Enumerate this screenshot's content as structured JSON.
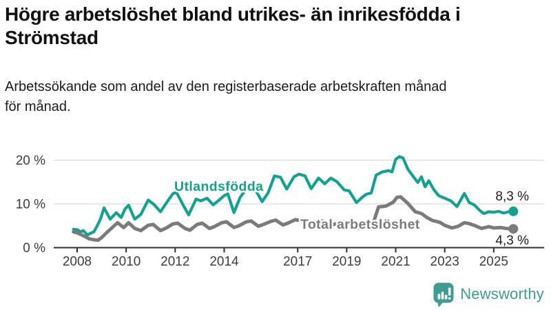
{
  "header": {
    "title_lines": [
      "Högre arbetslöshet bland utrikes- än inrikesfödda i",
      "Strömstad"
    ],
    "subtitle_lines": [
      "Arbetssökande som andel av den registerbaserade arbetskraften månad",
      "för månad."
    ]
  },
  "chart_data": {
    "type": "line",
    "title": "Högre arbetslöshet bland utrikes- än inrikesfödda i Strömstad",
    "subtitle": "Arbetssökande som andel av den registerbaserade arbetskraften månad för månad.",
    "xlabel": "",
    "ylabel": "",
    "unit": "%",
    "grid": "horizontal-only",
    "legend": "inline-labels",
    "x_ticks": [
      2008,
      2010,
      2012,
      2014,
      2017,
      2019,
      2021,
      2023,
      2025
    ],
    "y_ticks": [
      0,
      10,
      20
    ],
    "y_tick_labels": [
      "0 %",
      "10 %",
      "20 %"
    ],
    "xlim": [
      2007.6,
      2026.4
    ],
    "ylim": [
      0,
      22
    ],
    "series": [
      {
        "name": "Utlandsfödda",
        "color": "#13a291",
        "end_label": "8,3 %",
        "end_value": 8.3,
        "points": [
          [
            2007.85,
            4.2
          ],
          [
            2008.0,
            4.1
          ],
          [
            2008.15,
            3.6
          ],
          [
            2008.25,
            3.9
          ],
          [
            2008.42,
            2.9
          ],
          [
            2008.55,
            3.3
          ],
          [
            2008.68,
            3.6
          ],
          [
            2008.8,
            4.8
          ],
          [
            2008.95,
            6.5
          ],
          [
            2009.1,
            9.1
          ],
          [
            2009.35,
            6.5
          ],
          [
            2009.6,
            8.0
          ],
          [
            2009.8,
            6.9
          ],
          [
            2009.95,
            8.8
          ],
          [
            2010.1,
            9.7
          ],
          [
            2010.35,
            6.5
          ],
          [
            2010.6,
            7.6
          ],
          [
            2010.9,
            10.9
          ],
          [
            2011.15,
            9.8
          ],
          [
            2011.4,
            8.2
          ],
          [
            2011.65,
            10.3
          ],
          [
            2011.9,
            12.3
          ],
          [
            2012.05,
            12.7
          ],
          [
            2012.3,
            10.0
          ],
          [
            2012.55,
            7.5
          ],
          [
            2012.85,
            11.1
          ],
          [
            2013.05,
            10.7
          ],
          [
            2013.3,
            11.3
          ],
          [
            2013.55,
            9.8
          ],
          [
            2013.8,
            10.9
          ],
          [
            2014.0,
            11.9
          ],
          [
            2014.15,
            12.3
          ],
          [
            2014.4,
            8.0
          ],
          [
            2014.65,
            11.5
          ],
          [
            2014.85,
            13.0
          ],
          [
            2015.05,
            14.2
          ],
          [
            2015.3,
            13.0
          ],
          [
            2015.55,
            10.5
          ],
          [
            2015.8,
            12.6
          ],
          [
            2016.05,
            16.4
          ],
          [
            2016.3,
            16.1
          ],
          [
            2016.55,
            13.4
          ],
          [
            2016.85,
            16.2
          ],
          [
            2017.05,
            16.8
          ],
          [
            2017.3,
            16.4
          ],
          [
            2017.55,
            13.5
          ],
          [
            2017.85,
            15.9
          ],
          [
            2018.1,
            14.6
          ],
          [
            2018.35,
            15.9
          ],
          [
            2018.6,
            15.1
          ],
          [
            2018.9,
            13.2
          ],
          [
            2019.1,
            13.0
          ],
          [
            2019.4,
            10.3
          ],
          [
            2019.65,
            11.6
          ],
          [
            2019.8,
            12.2
          ],
          [
            2020.0,
            12.5
          ],
          [
            2020.2,
            16.6
          ],
          [
            2020.45,
            17.3
          ],
          [
            2020.7,
            17.6
          ],
          [
            2020.85,
            17.3
          ],
          [
            2021.0,
            20.2
          ],
          [
            2021.15,
            20.8
          ],
          [
            2021.3,
            20.5
          ],
          [
            2021.5,
            17.9
          ],
          [
            2021.7,
            16.4
          ],
          [
            2021.9,
            14.9
          ],
          [
            2022.05,
            16.2
          ],
          [
            2022.2,
            13.9
          ],
          [
            2022.35,
            15.3
          ],
          [
            2022.55,
            13.3
          ],
          [
            2022.75,
            11.9
          ],
          [
            2023.0,
            11.3
          ],
          [
            2023.25,
            10.7
          ],
          [
            2023.5,
            9.4
          ],
          [
            2023.8,
            12.4
          ],
          [
            2024.0,
            10.3
          ],
          [
            2024.2,
            9.8
          ],
          [
            2024.45,
            8.4
          ],
          [
            2024.6,
            7.8
          ],
          [
            2024.8,
            8.2
          ],
          [
            2025.0,
            8.1
          ],
          [
            2025.2,
            8.3
          ],
          [
            2025.4,
            7.9
          ],
          [
            2025.6,
            8.2
          ],
          [
            2025.8,
            8.3
          ]
        ]
      },
      {
        "name": "Total arbetslöshet",
        "color": "#7b7b7b",
        "end_label": "4,3 %",
        "end_value": 4.3,
        "points": [
          [
            2007.85,
            3.6
          ],
          [
            2008.0,
            3.4
          ],
          [
            2008.15,
            3.0
          ],
          [
            2008.3,
            2.6
          ],
          [
            2008.5,
            2.0
          ],
          [
            2008.7,
            1.8
          ],
          [
            2008.85,
            1.7
          ],
          [
            2009.0,
            2.3
          ],
          [
            2009.2,
            3.4
          ],
          [
            2009.45,
            4.7
          ],
          [
            2009.65,
            5.7
          ],
          [
            2009.9,
            4.6
          ],
          [
            2010.1,
            5.7
          ],
          [
            2010.35,
            4.4
          ],
          [
            2010.6,
            3.9
          ],
          [
            2010.9,
            5.1
          ],
          [
            2011.1,
            5.3
          ],
          [
            2011.4,
            3.9
          ],
          [
            2011.6,
            4.4
          ],
          [
            2011.9,
            5.4
          ],
          [
            2012.1,
            5.6
          ],
          [
            2012.4,
            4.4
          ],
          [
            2012.6,
            4.0
          ],
          [
            2012.9,
            5.3
          ],
          [
            2013.1,
            5.6
          ],
          [
            2013.4,
            4.4
          ],
          [
            2013.6,
            4.8
          ],
          [
            2013.9,
            5.7
          ],
          [
            2014.1,
            5.9
          ],
          [
            2014.4,
            4.6
          ],
          [
            2014.6,
            5.0
          ],
          [
            2014.9,
            5.9
          ],
          [
            2015.1,
            6.1
          ],
          [
            2015.4,
            4.9
          ],
          [
            2015.6,
            5.3
          ],
          [
            2015.9,
            6.0
          ],
          [
            2016.1,
            6.3
          ],
          [
            2016.4,
            5.2
          ],
          [
            2016.6,
            5.6
          ],
          [
            2016.9,
            6.4
          ],
          [
            2017.1,
            6.2
          ],
          [
            2017.4,
            5.4
          ],
          [
            2017.6,
            5.8
          ],
          [
            2017.9,
            6.1
          ],
          [
            2018.1,
            6.0
          ],
          [
            2018.4,
            5.2
          ],
          [
            2018.6,
            5.5
          ],
          [
            2018.9,
            5.9
          ],
          [
            2019.1,
            5.6
          ],
          [
            2019.4,
            4.6
          ],
          [
            2019.6,
            4.4
          ],
          [
            2019.9,
            5.0
          ],
          [
            2020.1,
            5.9
          ],
          [
            2020.3,
            9.3
          ],
          [
            2020.6,
            9.5
          ],
          [
            2020.9,
            10.4
          ],
          [
            2021.05,
            11.5
          ],
          [
            2021.2,
            11.6
          ],
          [
            2021.5,
            10.1
          ],
          [
            2021.8,
            8.2
          ],
          [
            2022.05,
            7.8
          ],
          [
            2022.3,
            6.8
          ],
          [
            2022.5,
            6.2
          ],
          [
            2022.8,
            5.8
          ],
          [
            2023.0,
            5.1
          ],
          [
            2023.3,
            4.5
          ],
          [
            2023.55,
            4.9
          ],
          [
            2023.8,
            5.7
          ],
          [
            2024.0,
            5.5
          ],
          [
            2024.2,
            5.1
          ],
          [
            2024.5,
            4.4
          ],
          [
            2024.8,
            4.8
          ],
          [
            2025.0,
            4.5
          ],
          [
            2025.3,
            4.6
          ],
          [
            2025.5,
            4.4
          ],
          [
            2025.8,
            4.3
          ]
        ]
      }
    ]
  },
  "footer": {
    "brand": "Newsworthy",
    "brand_color": "#3f9c94",
    "icon": "bar-chart-speech-bubble-icon"
  }
}
